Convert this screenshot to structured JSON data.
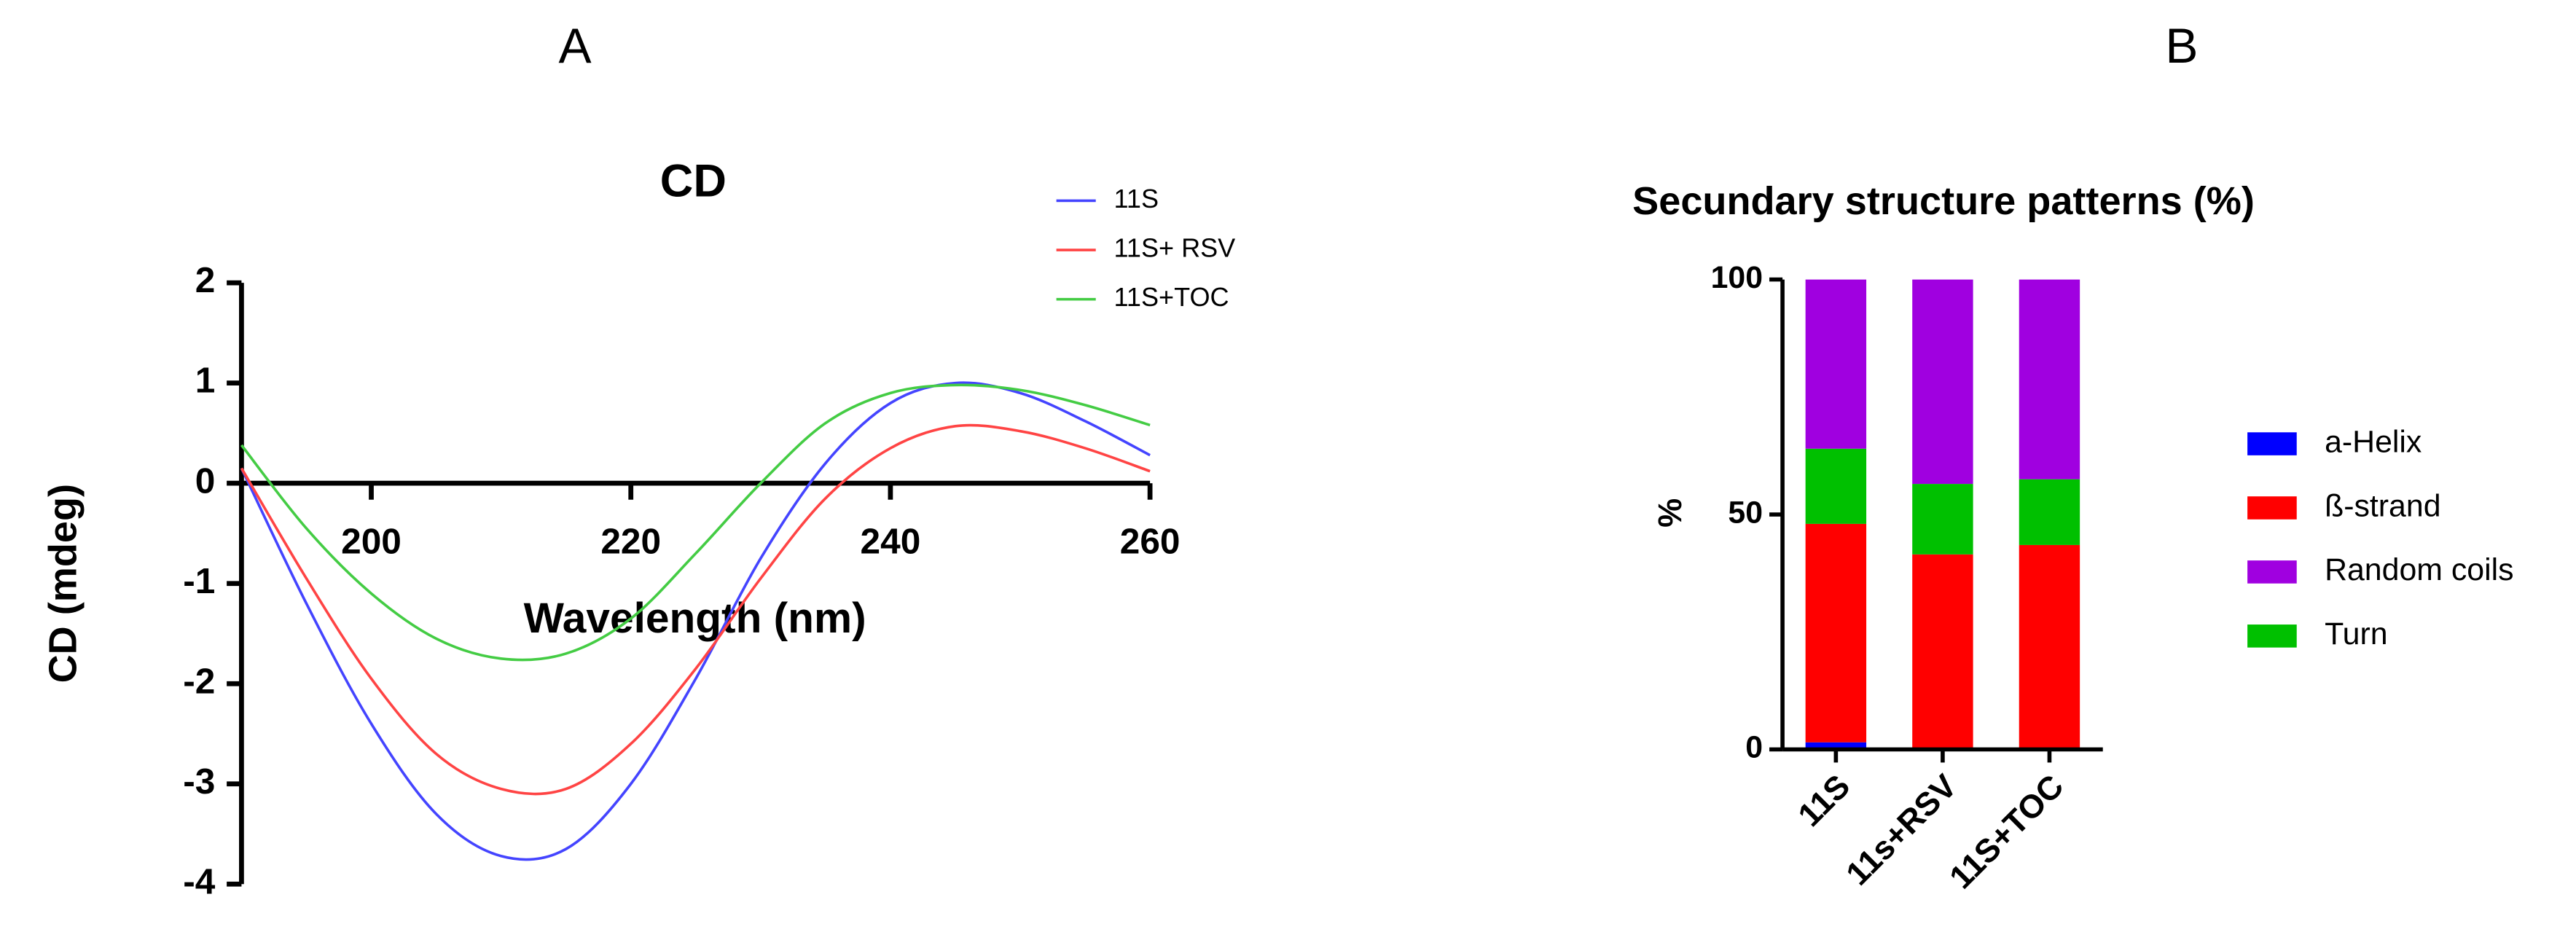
{
  "chart_data": [
    {
      "type": "line",
      "label": "A",
      "title": "CD",
      "x_label": "Wavelength (nm)",
      "y_label": "CD (mdeg)",
      "x": [
        190,
        195,
        200,
        205,
        210,
        215,
        220,
        225,
        230,
        235,
        240,
        245,
        250,
        255,
        260
      ],
      "series": [
        {
          "name": "11S",
          "color": "#4444ff",
          "values": [
            0.15,
            -1.2,
            -2.4,
            -3.3,
            -3.72,
            -3.65,
            -3.0,
            -1.95,
            -0.75,
            0.2,
            0.8,
            1.0,
            0.9,
            0.62,
            0.28
          ]
        },
        {
          "name": "11S+ RSV",
          "color": "#ff4444",
          "values": [
            0.15,
            -0.95,
            -1.95,
            -2.7,
            -3.05,
            -3.05,
            -2.6,
            -1.85,
            -0.95,
            -0.15,
            0.35,
            0.57,
            0.52,
            0.35,
            0.12
          ]
        },
        {
          "name": "11S+TOC",
          "color": "#44cc44",
          "values": [
            0.38,
            -0.45,
            -1.1,
            -1.55,
            -1.75,
            -1.7,
            -1.35,
            -0.7,
            0.0,
            0.6,
            0.9,
            0.98,
            0.93,
            0.78,
            0.58
          ]
        }
      ],
      "xlim": [
        190,
        260
      ],
      "xticks": [
        200,
        220,
        240,
        260
      ],
      "ylim": [
        -4,
        2
      ],
      "yticks": [
        -4,
        -3,
        -2,
        -1,
        0,
        1,
        2
      ]
    },
    {
      "type": "stacked-bar",
      "label": "B",
      "title": "Secundary structure patterns (%)",
      "y_label": "%",
      "categories": [
        "11S",
        "11s+RSV",
        "11S+TOC"
      ],
      "series": [
        {
          "name": "a-Helix",
          "color": "#0000ff",
          "values": [
            1.5,
            0,
            0
          ]
        },
        {
          "name": "ß-strand",
          "color": "#ff0000",
          "values": [
            46.5,
            41.5,
            43.5
          ]
        },
        {
          "name": "Random coils",
          "color": "#a000e0",
          "values": [
            36,
            43.5,
            42.5
          ]
        },
        {
          "name": "Turn",
          "color": "#00c000",
          "values": [
            16,
            15,
            14
          ]
        }
      ],
      "ylim": [
        0,
        100
      ],
      "yticks": [
        0,
        50,
        100
      ]
    }
  ]
}
